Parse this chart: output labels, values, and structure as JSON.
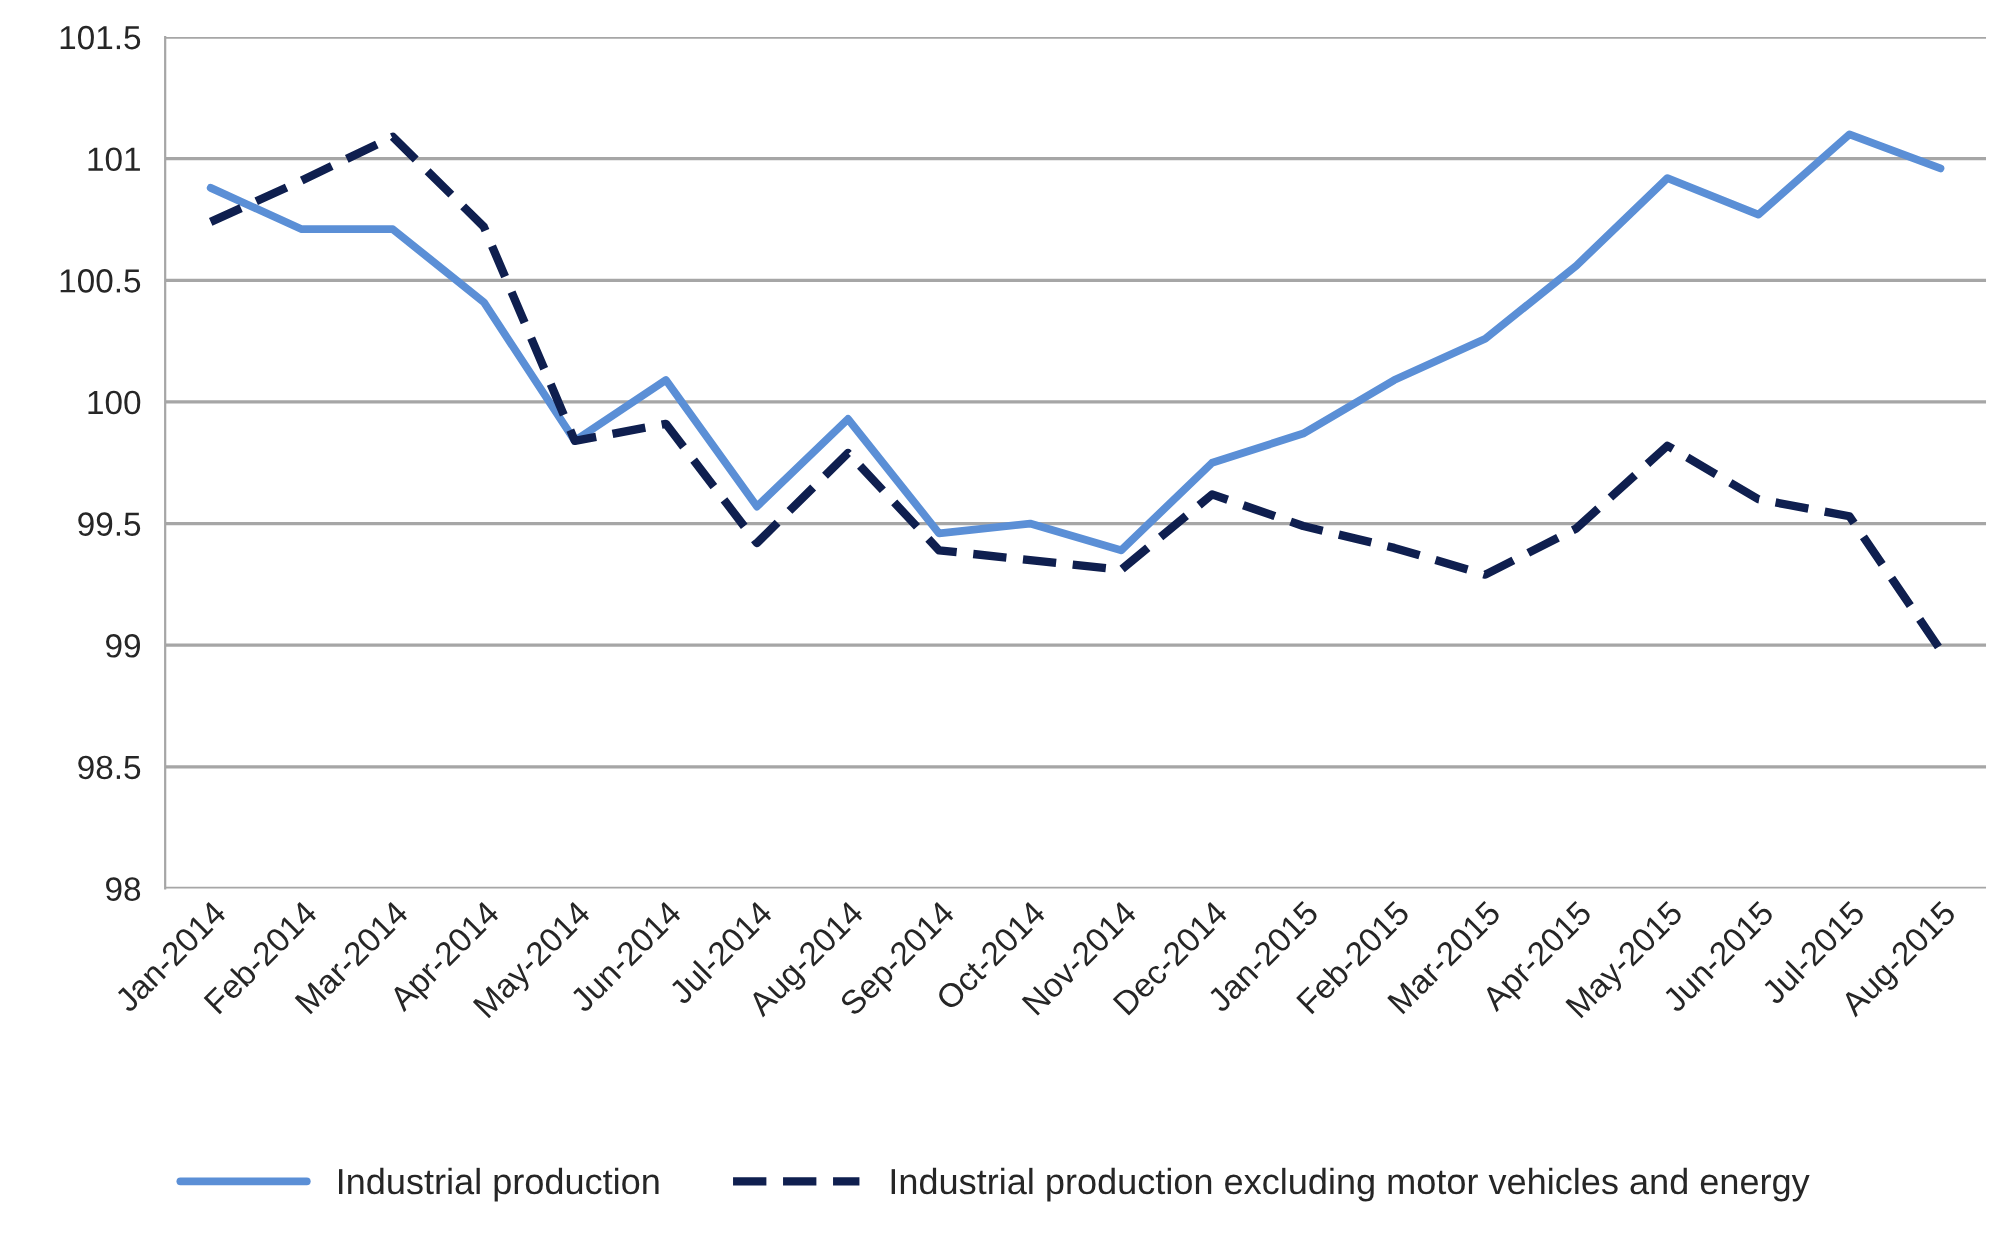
{
  "chart_data": {
    "type": "line",
    "categories": [
      "Jan-2014",
      "Feb-2014",
      "Mar-2014",
      "Apr-2014",
      "May-2014",
      "Jun-2014",
      "Jul-2014",
      "Aug-2014",
      "Sep-2014",
      "Oct-2014",
      "Nov-2014",
      "Dec-2014",
      "Jan-2015",
      "Feb-2015",
      "Mar-2015",
      "Apr-2015",
      "May-2015",
      "Jun-2015",
      "Jul-2015",
      "Aug-2015"
    ],
    "series": [
      {
        "name": "Industrial production",
        "color": "#5b8fd6",
        "line_style": "solid",
        "values": [
          100.88,
          100.71,
          100.71,
          100.41,
          99.84,
          100.09,
          99.57,
          99.93,
          99.46,
          99.5,
          99.39,
          99.75,
          99.87,
          100.09,
          100.26,
          100.56,
          100.92,
          100.77,
          101.1,
          100.96
        ]
      },
      {
        "name": "Industrial production excluding motor vehicles and energy",
        "color": "#0f1f4f",
        "line_style": "dashed",
        "values": [
          100.74,
          100.91,
          101.09,
          100.72,
          99.84,
          99.91,
          99.42,
          99.79,
          99.39,
          99.35,
          99.31,
          99.62,
          99.49,
          99.4,
          99.29,
          99.48,
          99.82,
          99.6,
          99.53,
          98.98
        ]
      }
    ],
    "ylim": [
      98,
      101.5
    ],
    "yticks": [
      98,
      {
        "value": 98.5,
        "label": "98.5"
      },
      99,
      {
        "value": 99.5,
        "label": "99.5"
      },
      100,
      {
        "value": 100.5,
        "label": "100.5"
      },
      101,
      {
        "value": 101.5,
        "label": "101.5"
      }
    ],
    "grid": "y",
    "legend": "bottom",
    "marker": "none"
  }
}
